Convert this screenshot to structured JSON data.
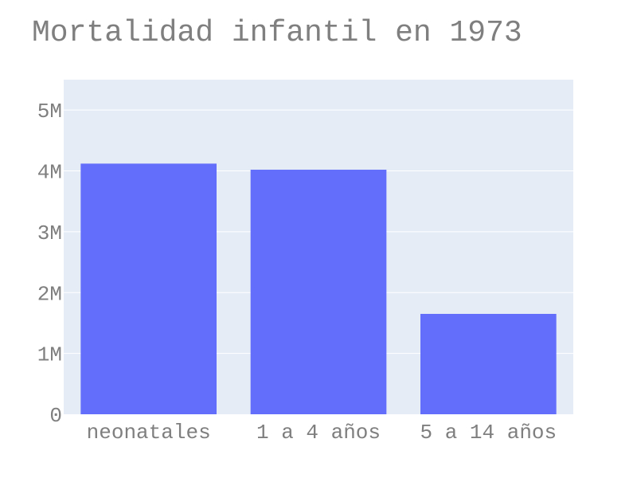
{
  "chart_data": {
    "type": "bar",
    "title": "Mortalidad infantil en 1973",
    "xlabel": "",
    "ylabel": "",
    "categories": [
      "neonatales",
      "1 a 4 años",
      "5 a 14 años"
    ],
    "values": [
      4120000,
      4020000,
      1650000
    ],
    "ylim": [
      0,
      5500000
    ],
    "yticks": [
      0,
      1000000,
      2000000,
      3000000,
      4000000,
      5000000
    ],
    "ytick_labels": [
      "0",
      "1M",
      "2M",
      "3M",
      "4M",
      "5M"
    ],
    "grid": true,
    "colors": {
      "bar": "#636efa",
      "plot_bg": "#e5ecf6",
      "grid": "#ffffff",
      "text": "#7f7f7f"
    }
  }
}
